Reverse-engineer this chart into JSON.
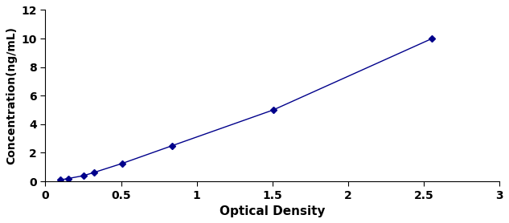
{
  "x": [
    0.097,
    0.151,
    0.253,
    0.322,
    0.506,
    0.838,
    1.505,
    2.554
  ],
  "y": [
    0.1,
    0.2,
    0.4,
    0.625,
    1.25,
    2.5,
    5.0,
    10.0
  ],
  "line_color": "#00008B",
  "marker_color": "#00008B",
  "marker_style": "D",
  "marker_size": 4,
  "line_width": 1.0,
  "xlabel": "Optical Density",
  "ylabel": "Concentration(ng/mL)",
  "xlim": [
    0,
    3
  ],
  "ylim": [
    0,
    12
  ],
  "xticks": [
    0,
    0.5,
    1,
    1.5,
    2,
    2.5,
    3
  ],
  "xtick_labels": [
    "0",
    "0.5",
    "1",
    "1.5",
    "2",
    "2.5",
    "3"
  ],
  "yticks": [
    0,
    2,
    4,
    6,
    8,
    10,
    12
  ],
  "ytick_labels": [
    "0",
    "2",
    "4",
    "6",
    "8",
    "10",
    "12"
  ],
  "xlabel_fontsize": 11,
  "ylabel_fontsize": 10,
  "tick_fontsize": 10,
  "background_color": "#ffffff"
}
